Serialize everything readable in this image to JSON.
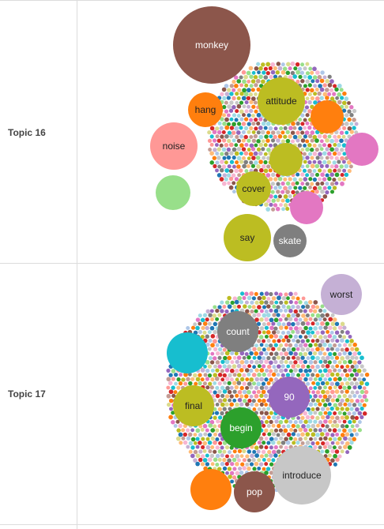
{
  "topics": [
    {
      "label": "Topic 16",
      "bubbles": [
        {
          "word": "monkey",
          "color": "#8c564b"
        },
        {
          "word": "hang",
          "color": "#ff7f0e"
        },
        {
          "word": "attitude",
          "color": "#bcbd22"
        },
        {
          "word": "",
          "color": "#ff7f0e"
        },
        {
          "word": "noise",
          "color": "#ff9896"
        },
        {
          "word": "",
          "color": "#e377c2"
        },
        {
          "word": "",
          "color": "#bcbd22"
        },
        {
          "word": "",
          "color": "#98df8a"
        },
        {
          "word": "cover",
          "color": "#bcbd22"
        },
        {
          "word": "",
          "color": "#e377c2"
        },
        {
          "word": "say",
          "color": "#bcbd22"
        },
        {
          "word": "skate",
          "color": "#7f7f7f"
        }
      ]
    },
    {
      "label": "Topic 17",
      "bubbles": [
        {
          "word": "worst",
          "color": "#c5b0d5"
        },
        {
          "word": "count",
          "color": "#7f7f7f"
        },
        {
          "word": "",
          "color": "#17becf"
        },
        {
          "word": "90",
          "color": "#9467bd"
        },
        {
          "word": "final",
          "color": "#bcbd22"
        },
        {
          "word": "begin",
          "color": "#2ca02c"
        },
        {
          "word": "introduce",
          "color": "#c7c7c7"
        },
        {
          "word": "",
          "color": "#ff7f0e"
        },
        {
          "word": "pop",
          "color": "#8c564b"
        }
      ]
    }
  ],
  "palette": [
    "#1f77b4",
    "#aec7e8",
    "#ff7f0e",
    "#ffbb78",
    "#2ca02c",
    "#98df8a",
    "#d62728",
    "#ff9896",
    "#9467bd",
    "#c5b0d5",
    "#8c564b",
    "#c49c94",
    "#e377c2",
    "#f7b6d2",
    "#7f7f7f",
    "#c7c7c7",
    "#bcbd22",
    "#dbdb8d",
    "#17becf",
    "#9edae5"
  ]
}
